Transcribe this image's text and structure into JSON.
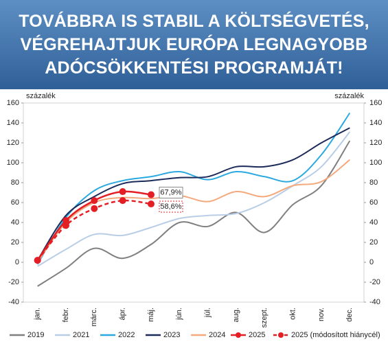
{
  "chart_data": {
    "type": "line",
    "title": [
      "TOVÁBBRA IS STABIL A KÖLTSÉGVETÉS,",
      "VÉGREHAJTJUK EURÓPA LEGNAGYOBB",
      "ADÓCSÖKKENTÉSI PROGRAMJÁT!"
    ],
    "ylabel": "százalék",
    "y2label": "százalék",
    "categories": [
      "jan.",
      "febr.",
      "márc.",
      "ápr.",
      "máj.",
      "jún.",
      "júl.",
      "aug.",
      "szept.",
      "okt.",
      "nov.",
      "dec."
    ],
    "ylim": [
      -40,
      160
    ],
    "yticks": [
      -40,
      -20,
      0,
      20,
      40,
      60,
      80,
      100,
      120,
      140,
      160
    ],
    "y2lim": [
      -40,
      160
    ],
    "y2ticks": [
      -40,
      -20,
      0,
      20,
      40,
      60,
      80,
      100,
      120,
      140,
      160
    ],
    "series": [
      {
        "name": "2019",
        "color": "#7f7f7f",
        "values": [
          -24,
          -6,
          14,
          4,
          18,
          40,
          36,
          50,
          30,
          58,
          77,
          122
        ]
      },
      {
        "name": "2021",
        "color": "#b9cde6",
        "values": [
          -4,
          13,
          28,
          27,
          35,
          44,
          47,
          49,
          60,
          77,
          96,
          131
        ]
      },
      {
        "name": "2022",
        "color": "#2aa9e0",
        "values": [
          -2,
          45,
          72,
          82,
          86,
          91,
          83,
          91,
          86,
          82,
          108,
          150
        ]
      },
      {
        "name": "2023",
        "color": "#1c2a5a",
        "values": [
          2,
          47,
          66,
          79,
          82,
          85,
          86,
          96,
          96,
          103,
          120,
          135
        ]
      },
      {
        "name": "2024",
        "color": "#f3a97c",
        "values": [
          0,
          40,
          60,
          65,
          64,
          67,
          61,
          71,
          66,
          77,
          81,
          103
        ]
      },
      {
        "name": "2025",
        "color": "#e31e24",
        "markers": true,
        "values": [
          2,
          42,
          62,
          71,
          67.9,
          null,
          null,
          null,
          null,
          null,
          null,
          null
        ],
        "value_labels": [
          null,
          null,
          null,
          null,
          "67,9%",
          null,
          null,
          null,
          null,
          null,
          null,
          null
        ]
      },
      {
        "name": "2025 (módosított hiánycél)",
        "color": "#e31e24",
        "markers": true,
        "dashed": true,
        "values": [
          2,
          37,
          54,
          62,
          58.6,
          null,
          null,
          null,
          null,
          null,
          null,
          null
        ],
        "value_labels": [
          null,
          null,
          null,
          null,
          "58,6%",
          null,
          null,
          null,
          null,
          null,
          null,
          null
        ]
      }
    ]
  }
}
